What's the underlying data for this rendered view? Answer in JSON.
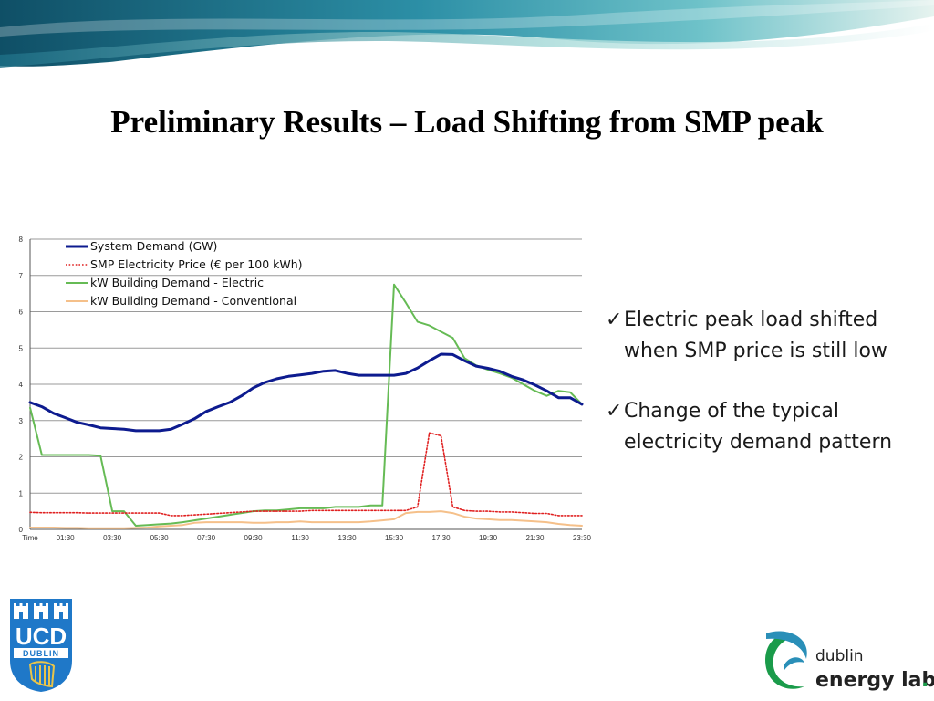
{
  "slide": {
    "title": "Preliminary Results – Load Shifting from SMP peak",
    "bullets": [
      {
        "check": "✓",
        "line1": "Electric peak load shifted",
        "line2": "when SMP price is still low"
      },
      {
        "check": "✓",
        "line1": "Change of the typical",
        "line2": "electricity demand pattern"
      }
    ]
  },
  "logos": {
    "ucd": {
      "line1": "UCD",
      "line2": "DUBLIN"
    },
    "del": {
      "line1": "dublin",
      "line2": "energy lab",
      "dot": "."
    }
  },
  "colors": {
    "system_demand": "#0d1b8f",
    "smp_price": "#e02020",
    "building_electric": "#66bb55",
    "building_conventional": "#f5c08a",
    "grid": "#9a9a9a"
  },
  "chart_data": {
    "type": "line",
    "ylim": [
      0,
      8
    ],
    "yticks": [
      0,
      1,
      2,
      3,
      4,
      5,
      6,
      7,
      8
    ],
    "xlim": [
      0,
      47
    ],
    "xtick_labels": [
      {
        "x": 0,
        "label": "Time"
      },
      {
        "x": 3,
        "label": "01:30"
      },
      {
        "x": 7,
        "label": "03:30"
      },
      {
        "x": 11,
        "label": "05:30"
      },
      {
        "x": 15,
        "label": "07:30"
      },
      {
        "x": 19,
        "label": "09:30"
      },
      {
        "x": 23,
        "label": "11:30"
      },
      {
        "x": 27,
        "label": "13:30"
      },
      {
        "x": 31,
        "label": "15:30"
      },
      {
        "x": 35,
        "label": "17:30"
      },
      {
        "x": 39,
        "label": "19:30"
      },
      {
        "x": 43,
        "label": "21:30"
      },
      {
        "x": 47,
        "label": "23:30"
      }
    ],
    "legend_position": "top-left",
    "grid": true,
    "series": [
      {
        "name": "System Demand (GW)",
        "style": "solid-thick",
        "color_key": "system_demand",
        "values": [
          3.5,
          3.38,
          3.2,
          3.08,
          2.95,
          2.88,
          2.8,
          2.78,
          2.76,
          2.72,
          2.72,
          2.72,
          2.76,
          2.9,
          3.05,
          3.25,
          3.38,
          3.5,
          3.68,
          3.9,
          4.05,
          4.15,
          4.22,
          4.26,
          4.3,
          4.36,
          4.38,
          4.3,
          4.25,
          4.25,
          4.25,
          4.25,
          4.3,
          4.45,
          4.65,
          4.83,
          4.82,
          4.65,
          4.5,
          4.44,
          4.36,
          4.22,
          4.12,
          3.98,
          3.82,
          3.63,
          3.63,
          3.45
        ]
      },
      {
        "name": "SMP Electricity Price (€ per 100 kWh)",
        "style": "dotted",
        "color_key": "smp_price",
        "values": [
          0.47,
          0.46,
          0.46,
          0.46,
          0.46,
          0.45,
          0.45,
          0.45,
          0.45,
          0.45,
          0.45,
          0.45,
          0.38,
          0.38,
          0.4,
          0.42,
          0.44,
          0.46,
          0.48,
          0.5,
          0.5,
          0.5,
          0.5,
          0.5,
          0.52,
          0.52,
          0.52,
          0.52,
          0.52,
          0.52,
          0.52,
          0.52,
          0.52,
          0.62,
          2.66,
          2.58,
          0.62,
          0.52,
          0.5,
          0.5,
          0.48,
          0.48,
          0.46,
          0.44,
          0.44,
          0.38,
          0.38,
          0.38
        ]
      },
      {
        "name": "kW Building Demand - Electric",
        "style": "solid",
        "color_key": "building_electric",
        "values": [
          3.35,
          2.05,
          2.05,
          2.05,
          2.05,
          2.05,
          2.03,
          0.5,
          0.5,
          0.1,
          0.12,
          0.14,
          0.16,
          0.2,
          0.25,
          0.3,
          0.35,
          0.4,
          0.45,
          0.5,
          0.52,
          0.52,
          0.55,
          0.58,
          0.58,
          0.58,
          0.62,
          0.62,
          0.62,
          0.66,
          0.66,
          6.75,
          6.25,
          5.72,
          5.62,
          5.45,
          5.28,
          4.72,
          4.52,
          4.4,
          4.3,
          4.18,
          4.0,
          3.82,
          3.68,
          3.82,
          3.78,
          3.45
        ]
      },
      {
        "name": "kW Building Demand - Conventional",
        "style": "solid",
        "color_key": "building_conventional",
        "values": [
          0.05,
          0.05,
          0.05,
          0.04,
          0.04,
          0.03,
          0.03,
          0.03,
          0.03,
          0.04,
          0.05,
          0.08,
          0.1,
          0.12,
          0.18,
          0.2,
          0.2,
          0.2,
          0.2,
          0.18,
          0.18,
          0.2,
          0.2,
          0.22,
          0.2,
          0.2,
          0.2,
          0.2,
          0.2,
          0.22,
          0.25,
          0.28,
          0.45,
          0.48,
          0.48,
          0.5,
          0.45,
          0.35,
          0.3,
          0.28,
          0.26,
          0.26,
          0.24,
          0.22,
          0.2,
          0.15,
          0.12,
          0.1
        ]
      }
    ]
  }
}
